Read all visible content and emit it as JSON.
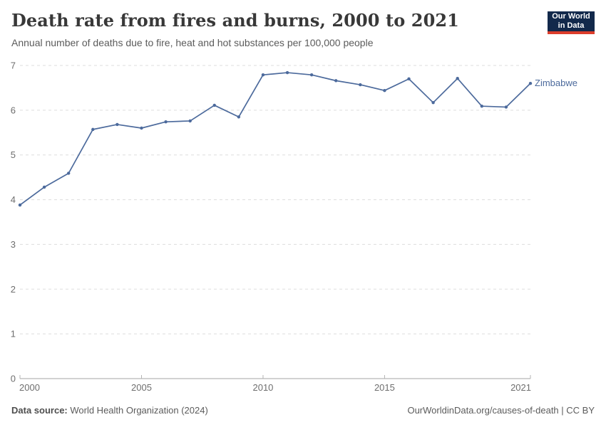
{
  "header": {
    "title": "Death rate from fires and burns, 2000 to 2021",
    "subtitle": "Annual number of deaths due to fire, heat and hot substances per 100,000 people"
  },
  "logo": {
    "line1": "Our World",
    "line2": "in Data",
    "bg_color": "#12294b",
    "accent_color": "#dc3d2b"
  },
  "chart_data": {
    "type": "line",
    "title": "Death rate from fires and burns, 2000 to 2021",
    "xlabel": "",
    "ylabel": "",
    "x": [
      2000,
      2001,
      2002,
      2003,
      2004,
      2005,
      2006,
      2007,
      2008,
      2009,
      2010,
      2011,
      2012,
      2013,
      2014,
      2015,
      2016,
      2017,
      2018,
      2019,
      2020,
      2021
    ],
    "series": [
      {
        "name": "Zimbabwe",
        "color": "#4c6a9c",
        "values": [
          3.88,
          4.28,
          4.59,
          5.57,
          5.68,
          5.6,
          5.74,
          5.76,
          6.11,
          5.85,
          6.79,
          6.84,
          6.79,
          6.66,
          6.57,
          6.44,
          6.7,
          6.17,
          6.71,
          6.09,
          6.07,
          6.6
        ]
      }
    ],
    "xlim": [
      2000,
      2021
    ],
    "ylim": [
      0,
      7
    ],
    "yticks": [
      0,
      1,
      2,
      3,
      4,
      5,
      6,
      7
    ],
    "xticks": [
      2000,
      2005,
      2010,
      2015,
      2021
    ],
    "grid": "horizontal-dashed",
    "legend_position": "end-of-line",
    "colors": {
      "grid": "#dddddd",
      "axis": "#a5a5a5",
      "tick": "#b3b3b3",
      "tick_label": "#6e6e6e"
    }
  },
  "footer": {
    "source_label": "Data source:",
    "source_value": " World Health Organization (2024)",
    "credit": "OurWorldinData.org/causes-of-death | CC BY"
  }
}
